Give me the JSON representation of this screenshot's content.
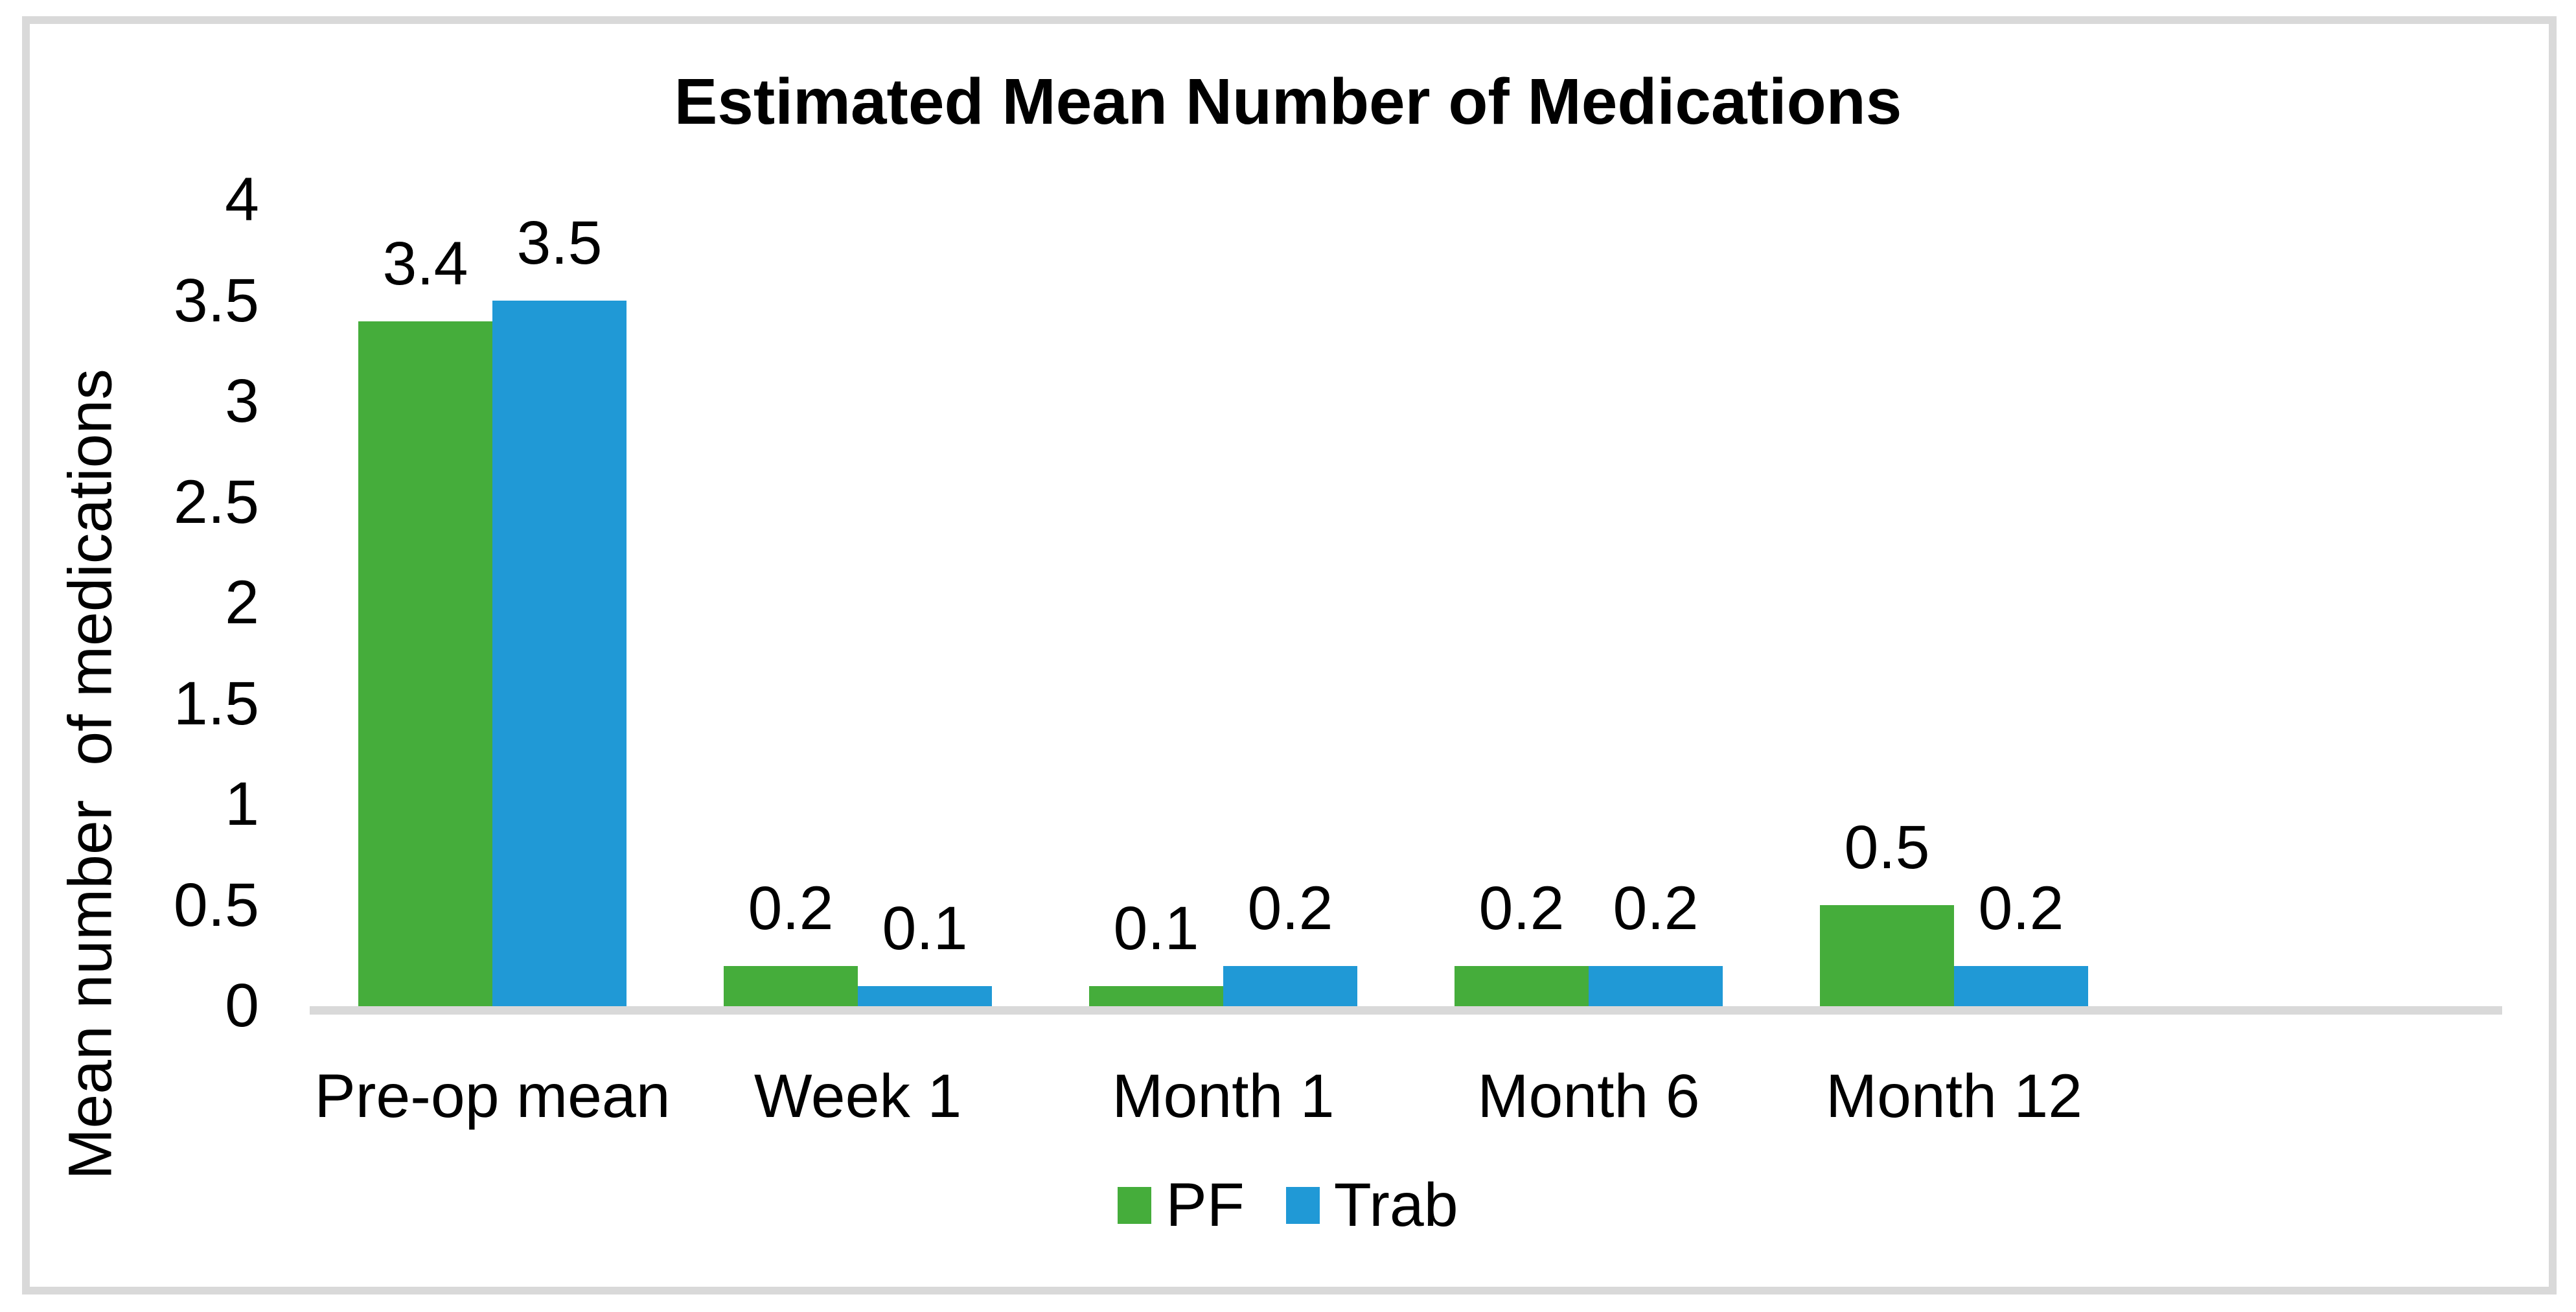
{
  "chart_data": {
    "type": "bar",
    "title": "Estimated Mean Number of Medications",
    "xlabel": "",
    "ylabel": "Mean number  of medications",
    "categories": [
      "Pre-op mean",
      "Week 1",
      "Month 1",
      "Month 6",
      "Month 12"
    ],
    "series": [
      {
        "name": "PF",
        "color": "#45AD3B",
        "values": [
          3.4,
          0.2,
          0.1,
          0.2,
          0.5
        ]
      },
      {
        "name": "Trab",
        "color": "#2099D6",
        "values": [
          3.5,
          0.1,
          0.2,
          0.2,
          0.2
        ]
      }
    ],
    "data_labels": [
      "3.4",
      "3.5",
      "0.2",
      "0.1",
      "0.1",
      "0.2",
      "0.2",
      "0.2",
      "0.5",
      "0.2"
    ],
    "ylim": [
      0,
      4
    ],
    "ytick_labels": [
      "4",
      "3.5",
      "3",
      "2.5",
      "2",
      "1.5",
      "1",
      "0.5",
      "0"
    ],
    "grid": false,
    "legend_position": "bottom",
    "legend_labels": [
      "PF",
      "Trab"
    ],
    "axis_line_color": "#D9D9D9",
    "frame_color": "#D9D9D9",
    "text_color": "#000000"
  }
}
